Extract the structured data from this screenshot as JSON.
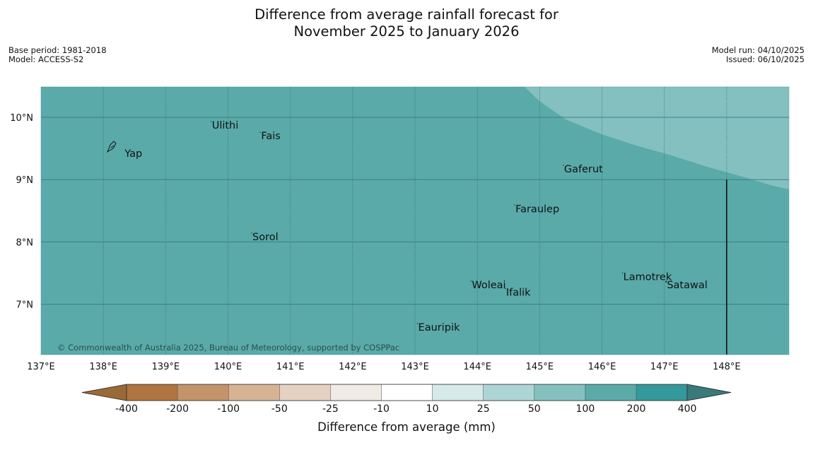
{
  "header": {
    "title_line1": "Difference from average rainfall forecast for",
    "title_line2": "November 2025 to January 2026",
    "base_period": "Base period: 1981-2018",
    "model": "Model: ACCESS-S2",
    "model_run": "Model run: 04/10/2025",
    "issued": "Issued: 06/10/2025"
  },
  "map": {
    "lon_ticks": [
      "137°E",
      "138°E",
      "139°E",
      "140°E",
      "141°E",
      "142°E",
      "143°E",
      "144°E",
      "145°E",
      "146°E",
      "147°E",
      "148°E"
    ],
    "lat_ticks": [
      "10°N",
      "9°N",
      "8°N",
      "7°N"
    ],
    "places": [
      {
        "name": "Yap",
        "lon": 138.33,
        "lat": 9.48
      },
      {
        "name": "Ulithi",
        "lon": 139.73,
        "lat": 9.93
      },
      {
        "name": "Fais",
        "lon": 140.52,
        "lat": 9.76
      },
      {
        "name": "Gaferut",
        "lon": 145.38,
        "lat": 9.23
      },
      {
        "name": "Faraulep",
        "lon": 144.6,
        "lat": 8.59
      },
      {
        "name": "Sorol",
        "lon": 140.38,
        "lat": 8.14
      },
      {
        "name": "Lamotrek",
        "lon": 146.33,
        "lat": 7.5
      },
      {
        "name": "Woleai",
        "lon": 143.9,
        "lat": 7.37
      },
      {
        "name": "Ifalik",
        "lon": 144.45,
        "lat": 7.25
      },
      {
        "name": "Satawal",
        "lon": 147.03,
        "lat": 7.37
      },
      {
        "name": "Eauripik",
        "lon": 143.04,
        "lat": 6.69
      }
    ],
    "copyright": "© Commonwealth of Australia 2025, Bureau of Meteorology, supported by COSPPac",
    "fill_color": "#5aaaaa",
    "upper_right_color": "#84c0c0"
  },
  "colorbar": {
    "label": "Difference from average (mm)",
    "ticks": [
      "-400",
      "-200",
      "-100",
      "-50",
      "-25",
      "-10",
      "10",
      "25",
      "50",
      "100",
      "200",
      "400"
    ],
    "colors": [
      "#9a6a36",
      "#b07440",
      "#c3946a",
      "#d6b393",
      "#e5d1c1",
      "#f0ebe4",
      "#ffffff",
      "#d6eae9",
      "#add5d5",
      "#84c0c0",
      "#5aaaaa",
      "#34999a",
      "#3a7a7a"
    ]
  }
}
